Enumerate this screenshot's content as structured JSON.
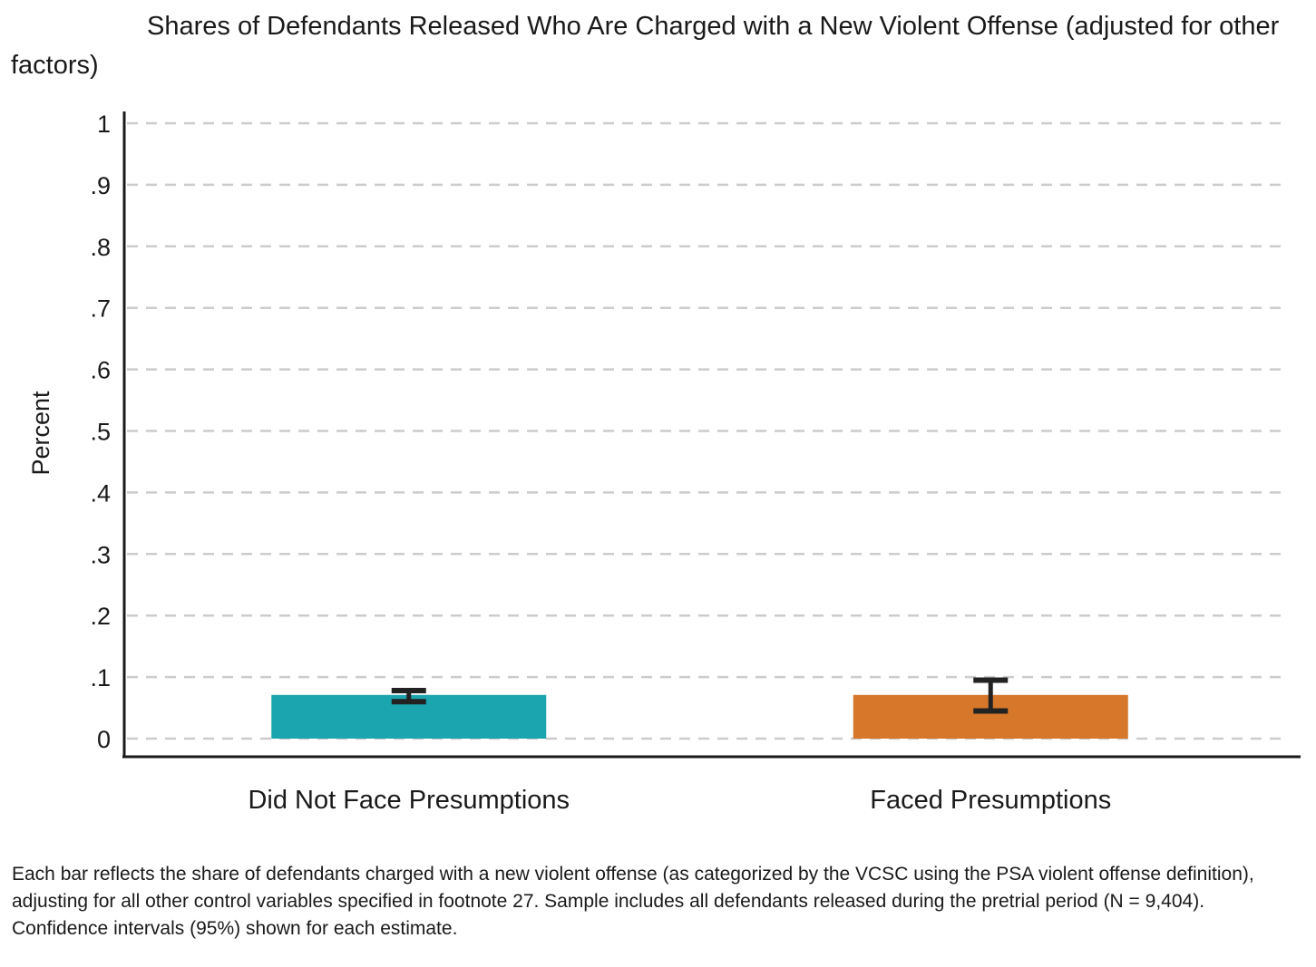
{
  "chart_data": {
    "type": "bar",
    "title": "Shares of Defendants Released Who Are Charged with a New Violent Offense (adjusted for other factors)",
    "ylabel": "Percent",
    "xlabel": "",
    "ylim": [
      0,
      1
    ],
    "yticks": [
      0,
      0.1,
      0.2,
      0.3,
      0.4,
      0.5,
      0.6,
      0.7,
      0.8,
      0.9,
      1
    ],
    "ytick_labels": [
      "0",
      ".1",
      ".2",
      ".3",
      ".4",
      ".5",
      ".6",
      ".7",
      ".8",
      ".9",
      "1"
    ],
    "grid": true,
    "grid_style": "dashed",
    "categories": [
      "Did Not Face Presumptions",
      "Faced Presumptions"
    ],
    "values": [
      0.071,
      0.071
    ],
    "ci_lower": [
      0.06,
      0.045
    ],
    "ci_upper": [
      0.078,
      0.095
    ],
    "colors": [
      "#1ba5ae",
      "#d6772a"
    ],
    "errorbar_color": "#222222",
    "note": "Each bar reflects the share of defendants charged with a new violent offense (as categorized by the VCSC using the PSA violent offense definition), adjusting for all other control variables specified in footnote 27. Sample includes all defendants released during the pretrial period (N = 9,404). Confidence intervals (95%) shown for each estimate."
  }
}
